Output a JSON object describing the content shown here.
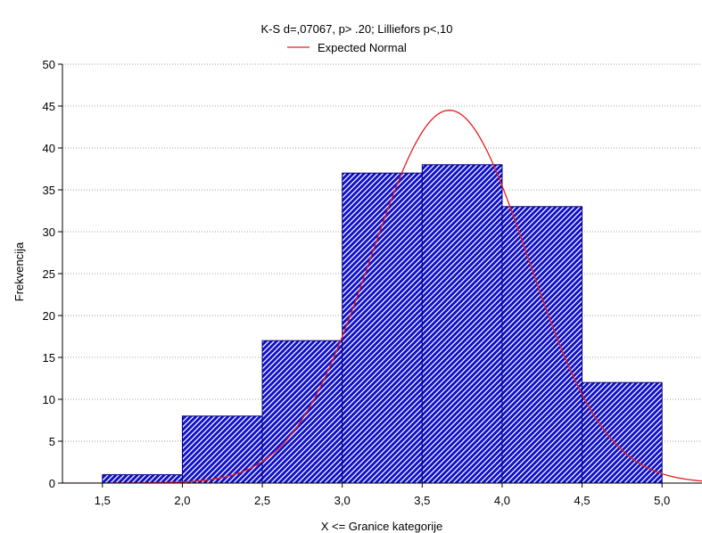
{
  "chart_data": {
    "type": "bar",
    "title": "K-S d=,07067, p> .20; Lilliefors p<,10",
    "legend": [
      {
        "label": "Expected Normal",
        "color": "#e02020"
      }
    ],
    "xlabel": "X <= Granice kategorije",
    "ylabel": "Frekvencija",
    "bins": [
      {
        "from": 1.5,
        "to": 2.0,
        "value": 1
      },
      {
        "from": 2.0,
        "to": 2.5,
        "value": 8
      },
      {
        "from": 2.5,
        "to": 3.0,
        "value": 17
      },
      {
        "from": 3.0,
        "to": 3.5,
        "value": 37
      },
      {
        "from": 3.5,
        "to": 4.0,
        "value": 38
      },
      {
        "from": 4.0,
        "to": 4.5,
        "value": 33
      },
      {
        "from": 4.5,
        "to": 5.0,
        "value": 12
      }
    ],
    "expected_normal": {
      "mean": 3.67,
      "peak": 44.5,
      "sd": 0.49
    },
    "xlim": [
      1.25,
      5.25
    ],
    "ylim": [
      0,
      50
    ],
    "x_ticks": [
      "1,5",
      "2,0",
      "2,5",
      "3,0",
      "3,5",
      "4,0",
      "4,5",
      "5,0"
    ],
    "x_tick_values": [
      1.5,
      2.0,
      2.5,
      3.0,
      3.5,
      4.0,
      4.5,
      5.0
    ],
    "y_ticks": [
      "0",
      "5",
      "10",
      "15",
      "20",
      "25",
      "30",
      "35",
      "40",
      "45",
      "50"
    ],
    "y_tick_values": [
      0,
      5,
      10,
      15,
      20,
      25,
      30,
      35,
      40,
      45,
      50
    ],
    "grid": "horizontal dotted",
    "legend_position": "top-center",
    "colors": {
      "bar_fill": "#1010c8",
      "bar_pattern": "#ffffff",
      "bar_edge": "#000080",
      "curve": "#e02020"
    }
  }
}
